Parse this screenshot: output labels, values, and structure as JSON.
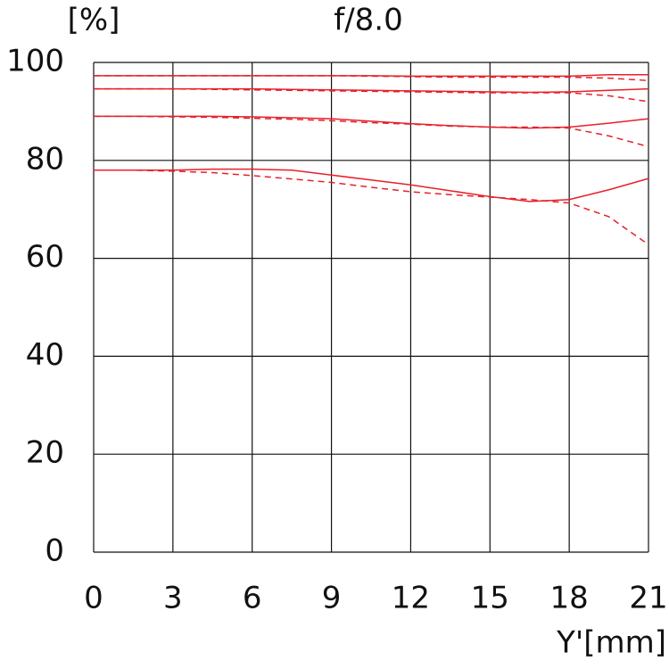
{
  "chart_data": {
    "type": "line",
    "title": "f/8.0",
    "y_label": "[%]",
    "x_label": "Y'[mm]",
    "x": [
      0,
      1.5,
      3,
      4.5,
      6,
      7.5,
      9,
      10.5,
      12,
      13.5,
      15,
      16.5,
      18,
      19.5,
      21
    ],
    "series": [
      {
        "color": "#e8202a",
        "dashed": false,
        "values": [
          97.3,
          97.3,
          97.3,
          97.3,
          97.3,
          97.3,
          97.3,
          97.3,
          97.2,
          97.2,
          97.2,
          97.2,
          97.2,
          97.5,
          97.5
        ]
      },
      {
        "color": "#e8202a",
        "dashed": true,
        "values": [
          97.3,
          97.3,
          97.3,
          97.3,
          97.3,
          97.3,
          97.3,
          97.2,
          97.1,
          97,
          97,
          97,
          97,
          96.8,
          96.3
        ]
      },
      {
        "color": "#e8202a",
        "dashed": false,
        "values": [
          94.6,
          94.6,
          94.6,
          94.6,
          94.6,
          94.5,
          94.4,
          94.3,
          94.2,
          94.1,
          94,
          93.9,
          94,
          94.3,
          94.6
        ]
      },
      {
        "color": "#e8202a",
        "dashed": true,
        "values": [
          94.6,
          94.6,
          94.6,
          94.5,
          94.4,
          94.3,
          94.2,
          94.1,
          94,
          93.9,
          93.8,
          93.8,
          93.8,
          93.2,
          92
        ]
      },
      {
        "color": "#e8202a",
        "dashed": false,
        "values": [
          89,
          89,
          89,
          89,
          88.9,
          88.7,
          88.5,
          88,
          87.5,
          87.1,
          86.8,
          86.6,
          86.8,
          87.6,
          88.5
        ]
      },
      {
        "color": "#e8202a",
        "dashed": true,
        "values": [
          89,
          89,
          88.9,
          88.8,
          88.6,
          88.4,
          88.1,
          87.7,
          87.4,
          87,
          86.8,
          86.8,
          86.6,
          85,
          82.8
        ]
      },
      {
        "color": "#e8202a",
        "dashed": false,
        "values": [
          78,
          78,
          78,
          78.2,
          78.2,
          78,
          77,
          76,
          75,
          73.8,
          72.6,
          71.6,
          72,
          74,
          76.3
        ]
      },
      {
        "color": "#e8202a",
        "dashed": true,
        "values": [
          78,
          78,
          77.8,
          77.5,
          76.9,
          76.2,
          75.5,
          74.5,
          73.6,
          73,
          72.5,
          72,
          71.3,
          68.5,
          62.8
        ]
      }
    ],
    "xlim": [
      0,
      21
    ],
    "xticks": [
      0,
      3,
      6,
      9,
      12,
      15,
      18,
      21
    ],
    "ylim": [
      0,
      100
    ],
    "yticks": [
      0,
      20,
      40,
      60,
      80,
      100
    ],
    "grid": true
  }
}
